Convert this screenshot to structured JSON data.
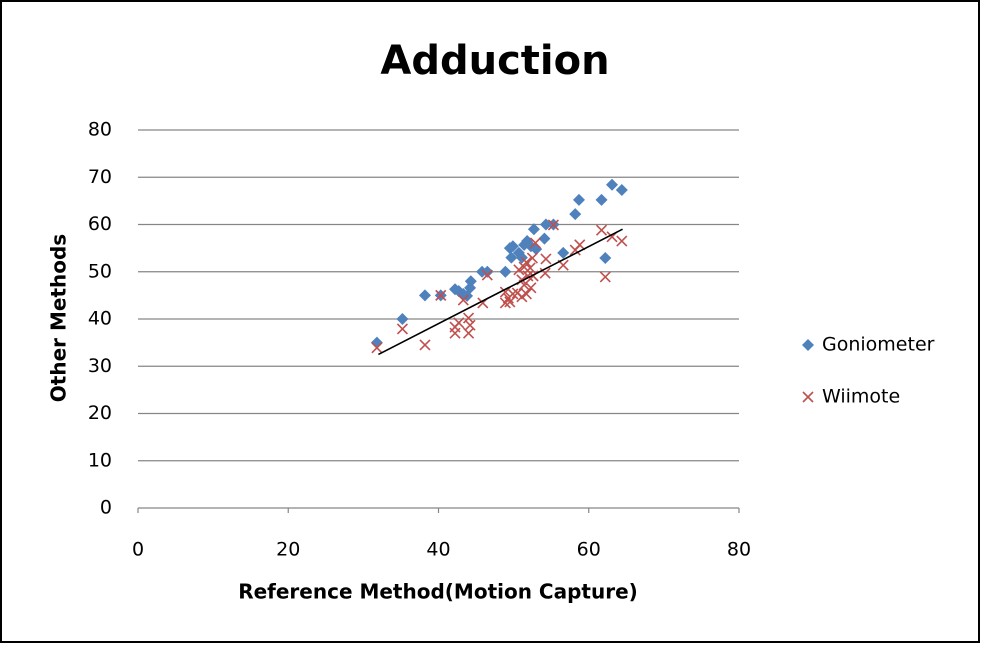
{
  "chart_data": {
    "type": "scatter",
    "title": "Adduction",
    "x_label": "Reference Method(Motion Capture)",
    "y_label": "Other Methods",
    "xlim": [
      0,
      80
    ],
    "xticks": [
      0,
      20,
      40,
      60,
      80
    ],
    "ylim": [
      0,
      80
    ],
    "yticks": [
      0,
      10,
      20,
      30,
      40,
      50,
      60,
      70,
      80
    ],
    "grid": true,
    "legend": "right",
    "series": [
      {
        "name": "Goniometer",
        "color": "#4f81bd",
        "marker": "diamond",
        "x": [
          31.8,
          35.2,
          38.2,
          40.3,
          42.2,
          42.7,
          43.3,
          43.8,
          44.2,
          44.3,
          45.8,
          46.5,
          48.9,
          49.5,
          49.9,
          49.7,
          50.7,
          51.1,
          51.4,
          51.8,
          52.3,
          52.7,
          53,
          54.1,
          54.3,
          55.3,
          56.6,
          58.2,
          58.7,
          61.7,
          62.2,
          63.1,
          64.4
        ],
        "values": [
          35,
          40,
          45,
          45,
          46.3,
          45.9,
          45.3,
          44.9,
          46.6,
          48,
          50,
          50,
          50,
          55,
          55.4,
          53,
          54,
          53,
          55.7,
          56.5,
          55.4,
          59,
          54.8,
          57,
          60,
          60,
          54,
          62.2,
          65.2,
          65.2,
          52.9,
          68.4,
          67.3
        ]
      },
      {
        "name": "Wiimote",
        "color": "#c0504d",
        "marker": "x",
        "x": [
          31.8,
          35.2,
          38.2,
          40.3,
          42.2,
          42.2,
          42.7,
          43.3,
          44,
          44,
          44.2,
          45.9,
          46.5,
          48.9,
          48.9,
          49.3,
          49.5,
          49.9,
          50.5,
          50.7,
          51.1,
          51.1,
          51.4,
          51.4,
          51.7,
          51.7,
          51.9,
          52.2,
          52.3,
          52.5,
          52.6,
          52.9,
          54.2,
          54.3,
          55.3,
          56.6,
          58.2,
          58.8,
          61.7,
          62.2,
          63.1,
          64.4
        ],
        "values": [
          33.9,
          37.9,
          34.5,
          45,
          38.3,
          37,
          39.2,
          44,
          40.2,
          37,
          38.7,
          43.4,
          49.3,
          45.7,
          43.4,
          44.4,
          43.6,
          45.3,
          45.5,
          50.4,
          44.7,
          48.3,
          47.2,
          51,
          52,
          45.3,
          49.1,
          50.8,
          46.6,
          52.9,
          49.1,
          56.1,
          49.7,
          52.7,
          59.9,
          51.4,
          54.6,
          55.7,
          58.8,
          48.9,
          57.4,
          56.5
        ]
      }
    ],
    "trendline": {
      "color": "#000000",
      "x": [
        32,
        64.5
      ],
      "values": [
        32.5,
        59
      ]
    }
  }
}
